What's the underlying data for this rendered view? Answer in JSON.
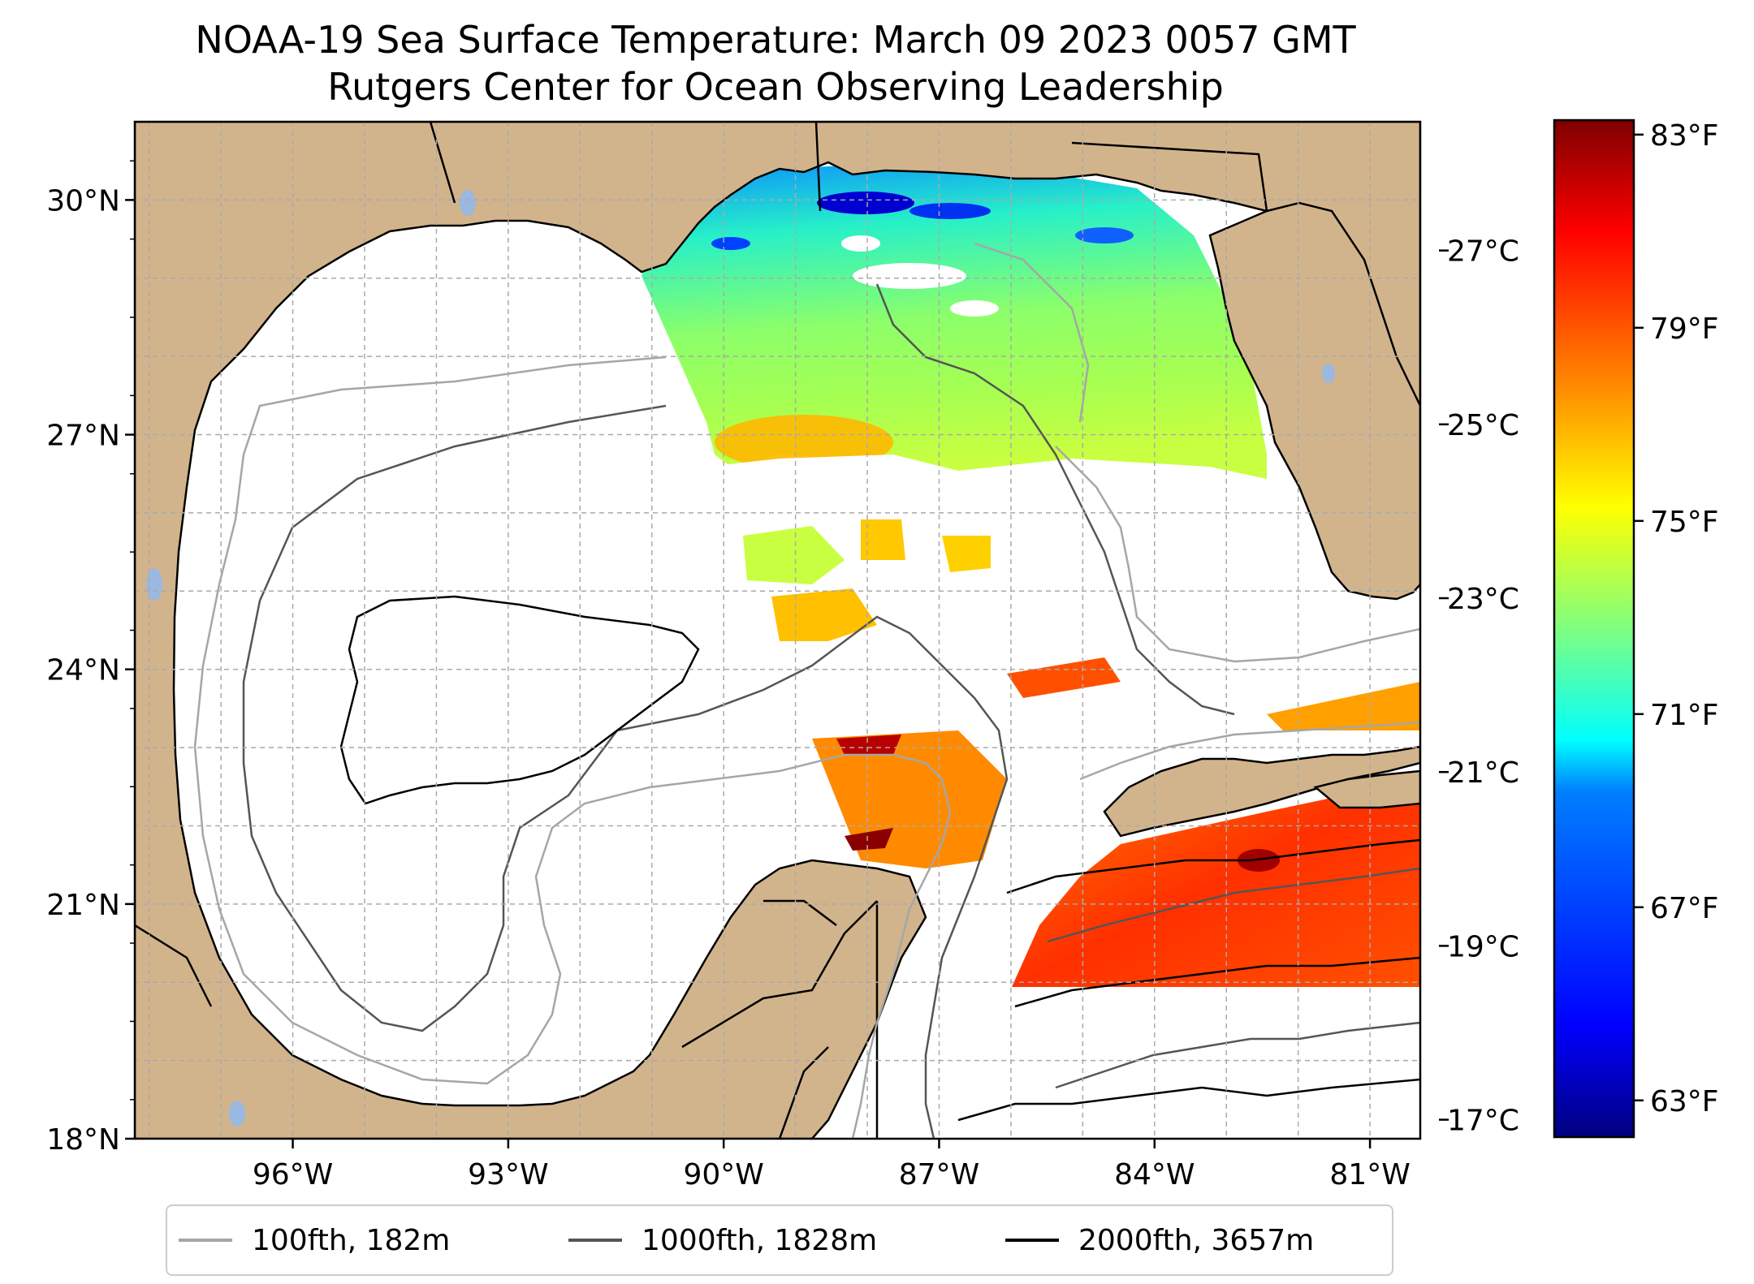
{
  "title": {
    "line1": "NOAA-19 Sea Surface Temperature: March 09 2023 0057 GMT",
    "line2": "Rutgers Center for Ocean Observing Leadership"
  },
  "map": {
    "lon_range": [
      -98.2,
      -80.3
    ],
    "lat_range": [
      18.0,
      31.0
    ],
    "land_color": "#d2b48c",
    "coast_color": "#000000",
    "lake_color": "#9ab8e0",
    "grid": "dashed",
    "lat_ticks": [
      {
        "value": 30,
        "label": "30°N"
      },
      {
        "value": 27,
        "label": "27°N"
      },
      {
        "value": 24,
        "label": "24°N"
      },
      {
        "value": 21,
        "label": "21°N"
      },
      {
        "value": 18,
        "label": "18°N"
      }
    ],
    "lon_ticks": [
      {
        "value": -96,
        "label": "96°W"
      },
      {
        "value": -93,
        "label": "93°W"
      },
      {
        "value": -90,
        "label": "90°W"
      },
      {
        "value": -87,
        "label": "87°W"
      },
      {
        "value": -84,
        "label": "84°W"
      },
      {
        "value": -81,
        "label": "81°W"
      }
    ]
  },
  "colorbar": {
    "colormap": "jet",
    "range_c": [
      16.8,
      28.5
    ],
    "colors": [
      "#00007f",
      "#0000ff",
      "#007fff",
      "#00ffff",
      "#7fff7f",
      "#ffff00",
      "#ff7f00",
      "#ff0000",
      "#7f0000"
    ],
    "celsius_ticks": [
      {
        "value": 27,
        "label": "27°C"
      },
      {
        "value": 25,
        "label": "25°C"
      },
      {
        "value": 23,
        "label": "23°C"
      },
      {
        "value": 21,
        "label": "21°C"
      },
      {
        "value": 19,
        "label": "19°C"
      },
      {
        "value": 17,
        "label": "17°C"
      }
    ],
    "fahrenheit_ticks": [
      {
        "value": 83,
        "label": "83°F"
      },
      {
        "value": 79,
        "label": "79°F"
      },
      {
        "value": 75,
        "label": "75°F"
      },
      {
        "value": 71,
        "label": "71°F"
      },
      {
        "value": 67,
        "label": "67°F"
      },
      {
        "value": 63,
        "label": "63°F"
      }
    ]
  },
  "legend": {
    "items": [
      {
        "label": "100fth, 182m",
        "color": "#a6a6a6"
      },
      {
        "label": "1000fth, 1828m",
        "color": "#555555"
      },
      {
        "label": "2000fth, 3657m",
        "color": "#000000"
      }
    ]
  }
}
